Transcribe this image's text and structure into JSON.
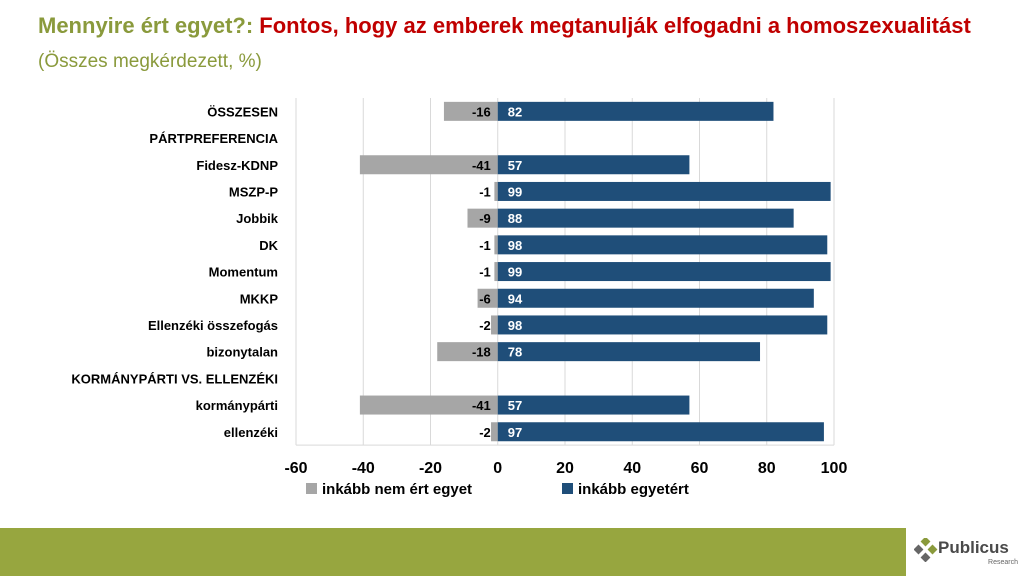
{
  "title": {
    "part1": "Mennyire ért egyet?: ",
    "part2": "Fontos, hogy az emberek megtanulják elfogadni a homoszexualitást",
    "part3": " (Összes megkérdezett, %)"
  },
  "colors": {
    "disagree": "#a6a6a6",
    "agree": "#1f4e79",
    "accent": "#97a63f",
    "title_red": "#c00000"
  },
  "chart_data": {
    "type": "bar",
    "orientation": "horizontal",
    "stacked": "diverging",
    "categories": [
      "ÖSSZESEN",
      "PÁRTPREFERENCIA",
      "Fidesz-KDNP",
      "MSZP-P",
      "Jobbik",
      "DK",
      "Momentum",
      "MKKP",
      "Ellenzéki összefogás",
      "bizonytalan",
      "KORMÁNYPÁRTI VS. ELLENZÉKI",
      "kormánypárti",
      "ellenzéki"
    ],
    "series": [
      {
        "name": "inkább nem ért egyet",
        "values": [
          -16,
          null,
          -41,
          -1,
          -9,
          -1,
          -1,
          -6,
          -2,
          -18,
          null,
          -41,
          -2
        ]
      },
      {
        "name": "inkább egyetért",
        "values": [
          82,
          null,
          57,
          99,
          88,
          98,
          99,
          94,
          98,
          78,
          null,
          57,
          97
        ]
      }
    ],
    "xlim": [
      -60,
      100
    ],
    "xticks": [
      "-60",
      "-40",
      "-20",
      "0",
      "20",
      "40",
      "60",
      "80",
      "100"
    ],
    "grid": true,
    "legend": "bottom"
  },
  "logo": {
    "name": "Publicus",
    "sub": "Research"
  }
}
